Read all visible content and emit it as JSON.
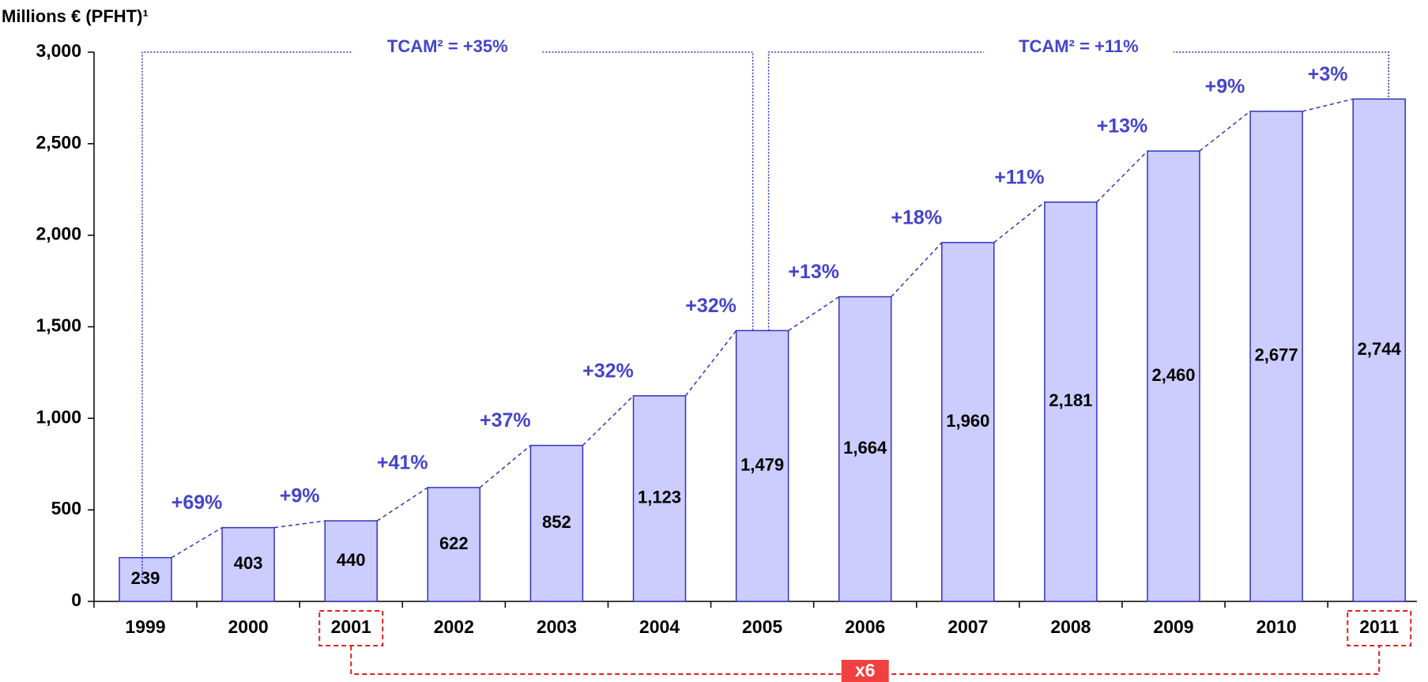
{
  "chart_data": {
    "type": "bar",
    "y_label": "Millions € (PFHT)¹",
    "categories": [
      "1999",
      "2000",
      "2001",
      "2002",
      "2003",
      "2004",
      "2005",
      "2006",
      "2007",
      "2008",
      "2009",
      "2010",
      "2011"
    ],
    "values": [
      239,
      403,
      440,
      622,
      852,
      1123,
      1479,
      1664,
      1960,
      2181,
      2460,
      2677,
      2744
    ],
    "value_labels": [
      "239",
      "403",
      "440",
      "622",
      "852",
      "1,123",
      "1,479",
      "1,664",
      "1,960",
      "2,181",
      "2,460",
      "2,677",
      "2,744"
    ],
    "growth_labels": [
      "+69%",
      "+9%",
      "+41%",
      "+37%",
      "+32%",
      "+32%",
      "+13%",
      "+18%",
      "+11%",
      "+13%",
      "+9%",
      "+3%"
    ],
    "annotations": [
      "TCAM² = +35%",
      "TCAM² = +11%"
    ],
    "highlight": "x6",
    "color": "#ccccff",
    "ylim": [
      0,
      3000
    ],
    "yticks": [
      0,
      {
        "value": 500,
        "label": "500"
      },
      {
        "value": 1000,
        "label": "1,000"
      },
      {
        "value": 1500,
        "label": "1,500"
      },
      {
        "value": 2000,
        "label": "2,000"
      },
      {
        "value": 2500,
        "label": "2,500"
      },
      {
        "value": 3000,
        "label": "3,000"
      }
    ]
  }
}
